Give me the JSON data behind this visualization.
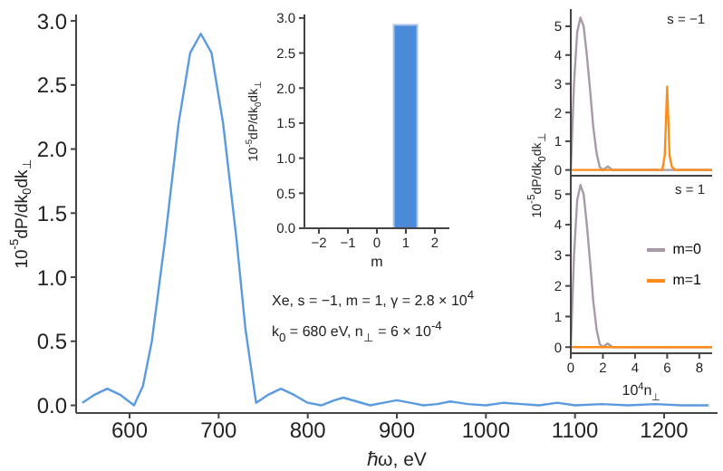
{
  "chart_data": [
    {
      "type": "line",
      "xlabel": "ℏω, eV",
      "ylabel": "10$^{-5}$dP/dk$_{0}$dk$_{⊥}$",
      "xlim": [
        540,
        1260
      ],
      "xticks": [
        600,
        700,
        800,
        900,
        1000,
        1100,
        1200
      ],
      "ylim": [
        -0.06,
        3.05
      ],
      "yticks": [
        {
          "value": 0,
          "label": "0.0"
        },
        0.5,
        {
          "value": 1,
          "label": "1.0"
        },
        1.5,
        {
          "value": 2,
          "label": "2.0"
        },
        2.5,
        {
          "value": 3,
          "label": "3.0"
        }
      ],
      "annotations": [
        "Xe,  s = −1,  m = 1,  γ = 2.8 × 10$^{4}$",
        "k$_{0}$ = 680 eV,  n$_{⊥}$ = 6 × 10$^{-4}$"
      ],
      "series": [
        {
          "color": "#5a9be0",
          "x": [
            547,
            560,
            575,
            590,
            605,
            615,
            625,
            640,
            655,
            668,
            680,
            692,
            705,
            720,
            730,
            742,
            755,
            770,
            785,
            800,
            815,
            830,
            840,
            855,
            870,
            885,
            900,
            915,
            930,
            945,
            960,
            980,
            1000,
            1020,
            1040,
            1060,
            1080,
            1100,
            1130,
            1160,
            1190,
            1220,
            1250
          ],
          "values": [
            0.02,
            0.08,
            0.13,
            0.08,
            0.0,
            0.15,
            0.5,
            1.3,
            2.2,
            2.75,
            2.9,
            2.75,
            2.2,
            1.3,
            0.6,
            0.02,
            0.08,
            0.13,
            0.08,
            0.02,
            0.0,
            0.04,
            0.06,
            0.03,
            0.0,
            0.02,
            0.04,
            0.02,
            0.0,
            0.01,
            0.03,
            0.01,
            0.0,
            0.02,
            0.01,
            0.0,
            0.02,
            0.0,
            0.01,
            0.0,
            0.01,
            0.0,
            0.0
          ]
        }
      ]
    },
    {
      "type": "bar",
      "xlabel": "m",
      "ylabel": "10$^{-5}$dP/dk$_{0}$dk$_{⊥}$",
      "categories": [
        "−2",
        "−1",
        "0",
        "1",
        "2"
      ],
      "ylim": [
        0,
        3.05
      ],
      "yticks": [
        {
          "value": 0,
          "label": "0.0"
        },
        0.5,
        {
          "value": 1,
          "label": "1.0"
        },
        1.5,
        {
          "value": 2,
          "label": "2.0"
        },
        2.5,
        {
          "value": 3,
          "label": "3.0"
        }
      ],
      "series": [
        {
          "color": "#4a8ad8",
          "values": [
            null,
            null,
            null,
            2.9,
            null
          ]
        }
      ]
    },
    {
      "type": "line",
      "ylabel": "10$^{-5}$dP/dk$_{0}$dk$_{⊥}$",
      "annotations": [
        "s = −1"
      ],
      "xlim": [
        0,
        8.8
      ],
      "xticks": [
        0,
        2,
        4,
        6,
        8
      ],
      "ylim": [
        -0.2,
        5.6
      ],
      "yticks": [
        0,
        1,
        2,
        3,
        4,
        5
      ],
      "tick_labels": "y",
      "series": [
        {
          "color": "#a89aa8",
          "x": [
            0,
            0.2,
            0.4,
            0.6,
            0.8,
            1.0,
            1.2,
            1.4,
            1.6,
            1.8,
            2.0,
            2.3,
            2.6,
            8.8
          ],
          "values": [
            0,
            3,
            4.8,
            5.3,
            5.0,
            4.0,
            2.8,
            1.5,
            0.6,
            0.1,
            0,
            0.12,
            0,
            0
          ]
        },
        {
          "color": "#ff8c1a",
          "x": [
            0,
            5.7,
            5.85,
            6.0,
            6.15,
            6.3,
            6.5,
            8.8
          ],
          "values": [
            0,
            0,
            0.5,
            2.9,
            0.5,
            0.1,
            0,
            0
          ]
        }
      ]
    },
    {
      "type": "line",
      "xlabel": "10$^{4}$n$_{⊥}$",
      "annotations": [
        "s = 1"
      ],
      "xlim": [
        0,
        8.8
      ],
      "xticks": [
        0,
        2,
        4,
        6,
        8
      ],
      "ylim": [
        -0.2,
        5.6
      ],
      "yticks": [
        0,
        1,
        2,
        3,
        4,
        5
      ],
      "legend": "right",
      "series": [
        {
          "name": "m=0",
          "color": "#a89aa8",
          "x": [
            0,
            0.2,
            0.4,
            0.6,
            0.8,
            1.0,
            1.2,
            1.4,
            1.6,
            1.8,
            2.0,
            2.3,
            2.6,
            8.8
          ],
          "values": [
            0,
            3,
            4.8,
            5.3,
            5.0,
            4.0,
            2.8,
            1.5,
            0.6,
            0.1,
            0,
            0.12,
            0,
            0
          ]
        },
        {
          "name": "m=1",
          "color": "#ff8c1a",
          "x": [
            0,
            8.8
          ],
          "values": [
            0,
            0
          ]
        }
      ]
    }
  ]
}
